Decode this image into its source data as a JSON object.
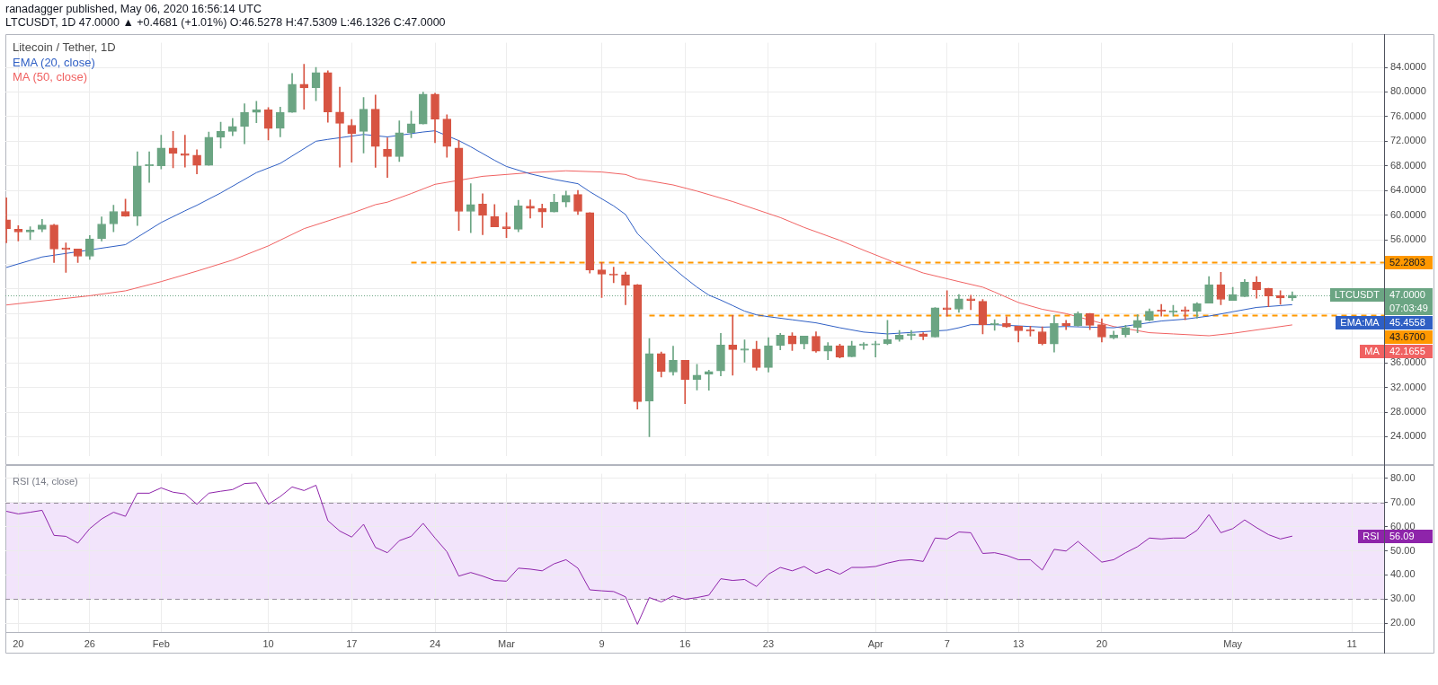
{
  "chart_data": [
    {
      "type": "candlestick",
      "title": "Litecoin / Tether, 1D",
      "subtitle": "LTCUSDT, 1D 47.0000 ▲ +0.4681 (+1.01%) O:46.5278 H:47.5309 L:46.1326 C:47.0000",
      "annotations": [
        "ranadagger published, May 06, 2020 16:56:14 UTC",
        "LTCUSDT",
        "07:03:49",
        "EMA:MA",
        "45.4558",
        "MA",
        "42.1655"
      ],
      "x": [
        "2020-01-19",
        "2020-01-20",
        "2020-01-21",
        "2020-01-22",
        "2020-01-23",
        "2020-01-24",
        "2020-01-25",
        "2020-01-26",
        "2020-01-27",
        "2020-01-28",
        "2020-01-29",
        "2020-01-30",
        "2020-01-31",
        "2020-02-01",
        "2020-02-02",
        "2020-02-03",
        "2020-02-04",
        "2020-02-05",
        "2020-02-06",
        "2020-02-07",
        "2020-02-08",
        "2020-02-09",
        "2020-02-10",
        "2020-02-11",
        "2020-02-12",
        "2020-02-13",
        "2020-02-14",
        "2020-02-15",
        "2020-02-16",
        "2020-02-17",
        "2020-02-18",
        "2020-02-19",
        "2020-02-20",
        "2020-02-21",
        "2020-02-22",
        "2020-02-23",
        "2020-02-24",
        "2020-02-25",
        "2020-02-26",
        "2020-02-27",
        "2020-02-28",
        "2020-02-29",
        "2020-03-01",
        "2020-03-02",
        "2020-03-03",
        "2020-03-04",
        "2020-03-05",
        "2020-03-06",
        "2020-03-07",
        "2020-03-08",
        "2020-03-09",
        "2020-03-10",
        "2020-03-11",
        "2020-03-12",
        "2020-03-13",
        "2020-03-14",
        "2020-03-15",
        "2020-03-16",
        "2020-03-17",
        "2020-03-18",
        "2020-03-19",
        "2020-03-20",
        "2020-03-21",
        "2020-03-22",
        "2020-03-23",
        "2020-03-24",
        "2020-03-25",
        "2020-03-26",
        "2020-03-27",
        "2020-03-28",
        "2020-03-29",
        "2020-03-30",
        "2020-03-31",
        "2020-04-01",
        "2020-04-02",
        "2020-04-03",
        "2020-04-04",
        "2020-04-05",
        "2020-04-06",
        "2020-04-07",
        "2020-04-08",
        "2020-04-09",
        "2020-04-10",
        "2020-04-11",
        "2020-04-12",
        "2020-04-13",
        "2020-04-14",
        "2020-04-15",
        "2020-04-16",
        "2020-04-17",
        "2020-04-18",
        "2020-04-19",
        "2020-04-20",
        "2020-04-21",
        "2020-04-22",
        "2020-04-23",
        "2020-04-24",
        "2020-04-25",
        "2020-04-26",
        "2020-04-27",
        "2020-04-28",
        "2020-04-29",
        "2020-04-30",
        "2020-05-01",
        "2020-05-02",
        "2020-05-03",
        "2020-05-04",
        "2020-05-05",
        "2020-05-06"
      ],
      "ohlc": [
        [
          59.25,
          62.8,
          55.5,
          57.75
        ],
        [
          57.7,
          58.3,
          55.8,
          57.25
        ],
        [
          57.25,
          58.1,
          56.0,
          57.6
        ],
        [
          57.7,
          59.3,
          57.3,
          58.4
        ],
        [
          58.4,
          58.5,
          52.3,
          54.5
        ],
        [
          54.55,
          55.5,
          50.7,
          54.45
        ],
        [
          54.5,
          54.5,
          52.3,
          53.3
        ],
        [
          53.3,
          56.7,
          52.8,
          56.15
        ],
        [
          56.15,
          59.7,
          55.8,
          58.55
        ],
        [
          58.55,
          61.6,
          57.3,
          60.6
        ],
        [
          60.6,
          62.6,
          59.8,
          59.8
        ],
        [
          59.8,
          70.3,
          58.3,
          68.0
        ],
        [
          68.0,
          70.3,
          65.3,
          68.05
        ],
        [
          68.0,
          73.0,
          67.5,
          70.9
        ],
        [
          70.9,
          73.6,
          67.7,
          70.0
        ],
        [
          70.0,
          73.0,
          67.8,
          69.7
        ],
        [
          69.75,
          70.6,
          66.7,
          68.1
        ],
        [
          68.1,
          73.5,
          68.1,
          72.65
        ],
        [
          72.65,
          75.1,
          70.9,
          73.6
        ],
        [
          73.6,
          75.7,
          72.9,
          74.4
        ],
        [
          74.4,
          78.1,
          71.6,
          76.7
        ],
        [
          76.7,
          78.5,
          75.0,
          77.1
        ],
        [
          77.1,
          77.45,
          72.2,
          74.05
        ],
        [
          74.1,
          77.55,
          72.7,
          76.7
        ],
        [
          76.7,
          83.0,
          76.7,
          81.25
        ],
        [
          81.25,
          84.5,
          77.2,
          80.65
        ],
        [
          80.7,
          84.0,
          78.6,
          83.15
        ],
        [
          83.15,
          83.45,
          75.1,
          76.75
        ],
        [
          76.75,
          80.8,
          67.8,
          74.9
        ],
        [
          74.6,
          75.55,
          68.6,
          73.25
        ],
        [
          73.6,
          79.1,
          70.1,
          77.2
        ],
        [
          77.2,
          79.5,
          67.75,
          71.15
        ],
        [
          70.7,
          72.55,
          66.1,
          69.5
        ],
        [
          69.5,
          75.3,
          68.7,
          73.4
        ],
        [
          73.4,
          76.9,
          72.55,
          74.85
        ],
        [
          74.8,
          80.0,
          74.8,
          79.65
        ],
        [
          79.65,
          79.8,
          71.75,
          75.6
        ],
        [
          75.6,
          76.3,
          69.4,
          71.15
        ],
        [
          70.9,
          72.1,
          57.5,
          60.6
        ],
        [
          60.6,
          65.1,
          57.15,
          61.7
        ],
        [
          61.8,
          63.45,
          56.8,
          59.95
        ],
        [
          59.8,
          61.7,
          58.1,
          58.1
        ],
        [
          58.1,
          60.4,
          56.35,
          57.8
        ],
        [
          57.7,
          62.4,
          57.3,
          61.5
        ],
        [
          61.45,
          62.5,
          59.5,
          61.1
        ],
        [
          61.1,
          61.8,
          58.0,
          60.5
        ],
        [
          60.5,
          63.4,
          60.5,
          62.1
        ],
        [
          62.1,
          63.9,
          61.35,
          63.2
        ],
        [
          63.35,
          64.0,
          60.1,
          60.6
        ],
        [
          60.4,
          60.4,
          50.6,
          51.1
        ],
        [
          51.1,
          52.3,
          46.6,
          50.4
        ],
        [
          50.3,
          51.55,
          49.0,
          50.25
        ],
        [
          50.3,
          50.75,
          45.45,
          48.6
        ],
        [
          48.65,
          48.75,
          28.5,
          29.7
        ],
        [
          29.8,
          39.95,
          24.0,
          37.5
        ],
        [
          37.5,
          37.75,
          33.7,
          34.6
        ],
        [
          34.5,
          38.7,
          34.0,
          36.4
        ],
        [
          36.4,
          36.4,
          29.35,
          33.3
        ],
        [
          33.3,
          35.75,
          31.6,
          34.0
        ],
        [
          34.15,
          34.8,
          31.55,
          34.6
        ],
        [
          34.7,
          40.8,
          33.9,
          38.9
        ],
        [
          38.9,
          43.7,
          34.0,
          38.15
        ],
        [
          38.05,
          39.75,
          36.1,
          38.15
        ],
        [
          38.25,
          39.5,
          34.8,
          35.25
        ],
        [
          35.25,
          40.1,
          34.5,
          38.8
        ],
        [
          38.8,
          40.8,
          38.1,
          40.5
        ],
        [
          40.4,
          40.9,
          38.0,
          39.05
        ],
        [
          39.05,
          40.35,
          38.25,
          40.35
        ],
        [
          40.3,
          41.05,
          37.7,
          37.9
        ],
        [
          37.9,
          39.3,
          36.5,
          38.8
        ],
        [
          38.8,
          39.05,
          36.8,
          36.9
        ],
        [
          37.0,
          39.5,
          37.0,
          38.8
        ],
        [
          38.85,
          39.3,
          38.2,
          38.9
        ],
        [
          38.9,
          39.5,
          36.95,
          39.0
        ],
        [
          39.15,
          42.9,
          38.95,
          39.8
        ],
        [
          39.8,
          41.25,
          39.5,
          40.5
        ],
        [
          40.45,
          41.25,
          39.75,
          40.7
        ],
        [
          40.7,
          40.9,
          39.75,
          40.3
        ],
        [
          40.2,
          45.0,
          40.2,
          44.95
        ],
        [
          44.95,
          47.7,
          43.6,
          44.65
        ],
        [
          44.7,
          47.1,
          44.2,
          46.4
        ],
        [
          46.4,
          47.0,
          44.65,
          46.15
        ],
        [
          46.0,
          46.3,
          40.7,
          42.2
        ],
        [
          42.2,
          43.0,
          41.3,
          42.4
        ],
        [
          42.4,
          43.5,
          41.75,
          41.85
        ],
        [
          41.95,
          41.95,
          39.4,
          41.2
        ],
        [
          41.25,
          41.95,
          40.35,
          41.15
        ],
        [
          41.05,
          41.85,
          38.9,
          39.15
        ],
        [
          39.05,
          43.7,
          37.75,
          42.4
        ],
        [
          42.4,
          42.9,
          41.4,
          42.05
        ],
        [
          42.05,
          44.3,
          41.95,
          44.05
        ],
        [
          44.05,
          44.05,
          41.4,
          42.1
        ],
        [
          42.2,
          43.15,
          39.4,
          40.2
        ],
        [
          40.05,
          41.15,
          39.9,
          40.55
        ],
        [
          40.55,
          42.1,
          40.2,
          41.75
        ],
        [
          41.75,
          43.8,
          40.9,
          42.9
        ],
        [
          42.9,
          44.75,
          42.8,
          44.4
        ],
        [
          44.45,
          45.5,
          43.6,
          44.35
        ],
        [
          44.2,
          45.35,
          43.6,
          44.45
        ],
        [
          44.45,
          45.1,
          43.0,
          44.4
        ],
        [
          44.35,
          45.8,
          43.25,
          45.6
        ],
        [
          45.7,
          50.0,
          45.7,
          48.7
        ],
        [
          48.7,
          50.7,
          45.45,
          46.3
        ],
        [
          46.15,
          48.25,
          46.15,
          47.1
        ],
        [
          46.75,
          49.55,
          46.75,
          49.1
        ],
        [
          49.1,
          50.0,
          46.5,
          47.9
        ],
        [
          48.1,
          48.1,
          45.1,
          46.85
        ],
        [
          46.9,
          47.7,
          45.5,
          46.53
        ],
        [
          46.5278,
          47.5309,
          46.1326,
          47.0
        ]
      ],
      "colors": [
        "#d75442",
        "#d75442",
        "#6ba583",
        "#6ba583",
        "#d75442",
        "#d75442",
        "#d75442",
        "#6ba583",
        "#6ba583",
        "#6ba583",
        "#d75442",
        "#6ba583",
        "#6ba583",
        "#6ba583",
        "#d75442",
        "#d75442",
        "#d75442",
        "#6ba583",
        "#6ba583",
        "#6ba583",
        "#6ba583",
        "#6ba583",
        "#d75442",
        "#6ba583",
        "#6ba583",
        "#d75442",
        "#6ba583",
        "#d75442",
        "#d75442",
        "#d75442",
        "#6ba583",
        "#d75442",
        "#d75442",
        "#6ba583",
        "#6ba583",
        "#6ba583",
        "#d75442",
        "#d75442",
        "#d75442",
        "#6ba583",
        "#d75442",
        "#d75442",
        "#d75442",
        "#6ba583",
        "#d75442",
        "#d75442",
        "#6ba583",
        "#6ba583",
        "#d75442",
        "#d75442",
        "#d75442",
        "#d75442",
        "#d75442",
        "#d75442",
        "#6ba583",
        "#d75442",
        "#6ba583",
        "#d75442",
        "#6ba583",
        "#6ba583",
        "#6ba583",
        "#d75442",
        "#6ba583",
        "#d75442",
        "#6ba583",
        "#6ba583",
        "#d75442",
        "#6ba583",
        "#d75442",
        "#6ba583",
        "#d75442",
        "#6ba583",
        "#6ba583",
        "#6ba583",
        "#6ba583",
        "#6ba583",
        "#6ba583",
        "#d75442",
        "#6ba583",
        "#d75442",
        "#6ba583",
        "#d75442",
        "#d75442",
        "#6ba583",
        "#d75442",
        "#d75442",
        "#d75442",
        "#d75442",
        "#6ba583",
        "#d75442",
        "#6ba583",
        "#d75442",
        "#d75442",
        "#6ba583",
        "#6ba583",
        "#6ba583",
        "#6ba583",
        "#d75442",
        "#6ba583",
        "#d75442",
        "#6ba583",
        "#6ba583",
        "#d75442",
        "#6ba583",
        "#6ba583",
        "#d75442",
        "#d75442",
        "#d75442",
        "#6ba583"
      ],
      "series": [
        {
          "type": "line",
          "name": "EMA (20, close)",
          "color": "#2f5fc4",
          "x": [
            "2020-01-19",
            "2020-01-22",
            "2020-01-29",
            "2020-02-01",
            "2020-02-03",
            "2020-02-04",
            "2020-02-06",
            "2020-02-09",
            "2020-02-11",
            "2020-02-14",
            "2020-02-15",
            "2020-02-18",
            "2020-02-20",
            "2020-02-23",
            "2020-02-24",
            "2020-02-26",
            "2020-02-27",
            "2020-02-29",
            "2020-03-01",
            "2020-03-03",
            "2020-03-05",
            "2020-03-07",
            "2020-03-08",
            "2020-03-10",
            "2020-03-11",
            "2020-03-12",
            "2020-03-13",
            "2020-03-14",
            "2020-03-15",
            "2020-03-16",
            "2020-03-17",
            "2020-03-18",
            "2020-03-19",
            "2020-03-20",
            "2020-03-21",
            "2020-03-22",
            "2020-03-23",
            "2020-03-25",
            "2020-03-27",
            "2020-03-29",
            "2020-03-31",
            "2020-04-02",
            "2020-04-07",
            "2020-04-08",
            "2020-04-09",
            "2020-04-11",
            "2020-04-13",
            "2020-04-15",
            "2020-04-17",
            "2020-04-21",
            "2020-04-25",
            "2020-04-27",
            "2020-04-29",
            "2020-05-01",
            "2020-05-03",
            "2020-05-05",
            "2020-05-06"
          ],
          "values": [
            51.5,
            53.2,
            55.2,
            58.8,
            60.7,
            61.6,
            63.6,
            66.9,
            68.4,
            72.0,
            72.3,
            73.1,
            72.7,
            73.5,
            73.7,
            72.1,
            71.1,
            68.9,
            67.9,
            66.7,
            65.8,
            65.1,
            63.8,
            61.5,
            60.1,
            57.0,
            55.1,
            53.1,
            51.4,
            49.8,
            48.3,
            47.0,
            46.2,
            45.3,
            44.4,
            43.8,
            43.5,
            43.0,
            42.5,
            41.7,
            41.0,
            40.7,
            41.3,
            41.7,
            42.2,
            42.2,
            42.0,
            41.8,
            41.9,
            41.7,
            42.8,
            43.1,
            43.6,
            44.3,
            45.0,
            45.3,
            45.4558
          ]
        },
        {
          "type": "line",
          "name": "MA (50, close)",
          "color": "#f06262",
          "x": [
            "2020-01-19",
            "2020-01-26",
            "2020-01-29",
            "2020-02-01",
            "2020-02-04",
            "2020-02-07",
            "2020-02-10",
            "2020-02-13",
            "2020-02-17",
            "2020-02-19",
            "2020-02-20",
            "2020-02-22",
            "2020-02-24",
            "2020-02-28",
            "2020-03-03",
            "2020-03-06",
            "2020-03-09",
            "2020-03-11",
            "2020-03-12",
            "2020-03-15",
            "2020-03-17",
            "2020-03-20",
            "2020-03-24",
            "2020-03-26",
            "2020-03-29",
            "2020-03-31",
            "2020-04-03",
            "2020-04-05",
            "2020-04-08",
            "2020-04-10",
            "2020-04-11",
            "2020-04-13",
            "2020-04-15",
            "2020-04-17",
            "2020-04-21",
            "2020-04-24",
            "2020-04-26",
            "2020-04-29",
            "2020-05-01",
            "2020-05-06"
          ],
          "values": [
            45.4,
            46.9,
            47.7,
            49.2,
            50.9,
            52.7,
            55.0,
            57.8,
            60.3,
            61.7,
            62.1,
            63.5,
            65.0,
            66.3,
            66.9,
            67.2,
            67.0,
            66.6,
            65.9,
            64.9,
            63.9,
            62.2,
            59.6,
            58.0,
            55.9,
            54.3,
            52.0,
            50.6,
            49.2,
            48.3,
            47.5,
            45.8,
            44.7,
            44.0,
            41.9,
            40.9,
            40.7,
            40.4,
            40.8,
            42.1655
          ]
        },
        {
          "type": "line",
          "color": "#ff9800",
          "line_style": "dashed",
          "x": [
            "2020-02-22",
            "2020-05-13T17:00"
          ],
          "values": [
            52.2803,
            52.2803
          ],
          "value_labels": [
            null,
            "52.2803"
          ]
        },
        {
          "type": "line",
          "color": "#ff9800",
          "line_style": "dashed",
          "x": [
            "2020-03-13",
            "2020-05-13T17:00"
          ],
          "values": [
            43.67,
            43.67
          ],
          "value_labels": [
            null,
            "43.6700"
          ]
        }
      ],
      "ref_lines": [
        {
          "axis": "y",
          "value": 47,
          "label": "47.0000",
          "color": "#6ba583",
          "line_style": "dotted"
        }
      ],
      "xlim": [
        "2020-01-18T22:00",
        "2020-05-13T17:00"
      ],
      "xticks": [
        {
          "value": "2020-01-20",
          "label": null
        },
        {
          "value": "2020-01-26",
          "label": null
        },
        {
          "value": "2020-02-01",
          "label": null
        },
        {
          "value": "2020-02-10",
          "label": null
        },
        {
          "value": "2020-02-17",
          "label": null
        },
        {
          "value": "2020-02-24",
          "label": null
        },
        {
          "value": "2020-03-01",
          "label": null
        },
        {
          "value": "2020-03-09",
          "label": null
        },
        {
          "value": "2020-03-16",
          "label": null
        },
        {
          "value": "2020-03-23",
          "label": null
        },
        {
          "value": "2020-04-01",
          "label": null
        },
        {
          "value": "2020-04-07",
          "label": null
        },
        {
          "value": "2020-04-13",
          "label": null
        },
        {
          "value": "2020-04-20",
          "label": null
        },
        {
          "value": "2020-05-01",
          "label": null
        },
        {
          "value": "2020-05-11",
          "label": null
        }
      ],
      "ylim": [
        20.8,
        88
      ],
      "yticks": [
        {
          "value": 24,
          "label": "24.0000"
        },
        {
          "value": 28,
          "label": "28.0000"
        },
        {
          "value": 32,
          "label": "32.0000"
        },
        {
          "value": 36,
          "label": "36.0000"
        },
        {
          "value": 40,
          "label": null
        },
        {
          "value": 44,
          "label": null
        },
        {
          "value": 48,
          "label": null
        },
        {
          "value": 52,
          "label": null
        },
        {
          "value": 56,
          "label": "56.0000"
        },
        {
          "value": 60,
          "label": "60.0000"
        },
        {
          "value": 64,
          "label": "64.0000"
        },
        {
          "value": 68,
          "label": "68.0000"
        },
        {
          "value": 72,
          "label": "72.0000"
        },
        {
          "value": 76,
          "label": "76.0000"
        },
        {
          "value": 80,
          "label": "80.0000"
        },
        {
          "value": 84,
          "label": "84.0000"
        }
      ],
      "grid": true,
      "legend": "top left",
      "tick_labels": "y",
      "marker": "none"
    },
    {
      "type": "line",
      "title": "RSI (14, close)",
      "x": [
        "2020-01-19",
        "2020-01-20",
        "2020-01-21",
        "2020-01-22",
        "2020-01-23",
        "2020-01-24",
        "2020-01-25",
        "2020-01-26",
        "2020-01-27",
        "2020-01-28",
        "2020-01-29",
        "2020-01-30",
        "2020-01-31",
        "2020-02-01",
        "2020-02-02",
        "2020-02-03",
        "2020-02-04",
        "2020-02-05",
        "2020-02-06",
        "2020-02-07",
        "2020-02-08",
        "2020-02-09",
        "2020-02-10",
        "2020-02-11",
        "2020-02-12",
        "2020-02-13",
        "2020-02-14",
        "2020-02-15",
        "2020-02-16",
        "2020-02-17",
        "2020-02-18",
        "2020-02-19",
        "2020-02-20",
        "2020-02-21",
        "2020-02-22",
        "2020-02-23",
        "2020-02-24",
        "2020-02-25",
        "2020-02-26",
        "2020-02-27",
        "2020-02-28",
        "2020-02-29",
        "2020-03-01",
        "2020-03-02",
        "2020-03-03",
        "2020-03-04",
        "2020-03-05",
        "2020-03-06",
        "2020-03-07",
        "2020-03-08",
        "2020-03-09",
        "2020-03-10",
        "2020-03-11",
        "2020-03-12",
        "2020-03-13",
        "2020-03-14",
        "2020-03-15",
        "2020-03-16",
        "2020-03-17",
        "2020-03-18",
        "2020-03-19",
        "2020-03-20",
        "2020-03-21",
        "2020-03-22",
        "2020-03-23",
        "2020-03-24",
        "2020-03-25",
        "2020-03-26",
        "2020-03-27",
        "2020-03-28",
        "2020-03-29",
        "2020-03-30",
        "2020-03-31",
        "2020-04-01",
        "2020-04-02",
        "2020-04-03",
        "2020-04-04",
        "2020-04-05",
        "2020-04-06",
        "2020-04-07",
        "2020-04-08",
        "2020-04-09",
        "2020-04-10",
        "2020-04-11",
        "2020-04-12",
        "2020-04-13",
        "2020-04-14",
        "2020-04-15",
        "2020-04-16",
        "2020-04-17",
        "2020-04-18",
        "2020-04-19",
        "2020-04-20",
        "2020-04-21",
        "2020-04-22",
        "2020-04-23",
        "2020-04-24",
        "2020-04-25",
        "2020-04-26",
        "2020-04-27",
        "2020-04-28",
        "2020-04-29",
        "2020-04-30",
        "2020-05-01",
        "2020-05-02",
        "2020-05-03",
        "2020-05-04",
        "2020-05-05",
        "2020-05-06"
      ],
      "series": [
        {
          "color": "#8e24aa",
          "values": [
            66.4,
            65.3,
            66.0,
            66.8,
            56.4,
            56.0,
            53.2,
            59.2,
            63.2,
            66.0,
            64.3,
            73.9,
            73.9,
            76.1,
            74.3,
            73.6,
            69.3,
            73.9,
            74.7,
            75.4,
            77.9,
            78.2,
            69.3,
            72.5,
            76.5,
            75.0,
            77.2,
            62.5,
            58.2,
            55.7,
            61.0,
            51.4,
            49.2,
            54.2,
            56.0,
            61.4,
            55.3,
            49.6,
            39.5,
            41.0,
            39.5,
            37.7,
            37.4,
            42.8,
            42.4,
            41.7,
            44.6,
            46.3,
            42.8,
            33.8,
            33.4,
            33.1,
            30.9,
            19.5,
            30.6,
            28.8,
            31.3,
            29.9,
            30.6,
            31.6,
            38.4,
            37.7,
            38.1,
            35.2,
            40.3,
            43.1,
            41.7,
            43.5,
            40.6,
            42.4,
            40.3,
            43.1,
            43.1,
            43.5,
            44.9,
            46.0,
            46.3,
            45.6,
            55.3,
            54.9,
            57.8,
            57.5,
            48.9,
            49.2,
            48.1,
            46.3,
            46.3,
            42.0,
            50.6,
            49.9,
            53.9,
            49.6,
            45.3,
            46.3,
            49.2,
            51.7,
            55.3,
            54.9,
            55.3,
            55.3,
            58.5,
            65.0,
            57.5,
            59.2,
            62.8,
            59.6,
            56.7,
            54.9,
            56.09
          ]
        }
      ],
      "bands": [
        {
          "axis": "y",
          "from": 30,
          "to": 70,
          "color": "#f2e4fb"
        }
      ],
      "annotations": [
        "RSI",
        "56.09"
      ],
      "xlim": [
        "2020-01-18T22:00",
        "2020-05-13T17:00"
      ],
      "xticks": [
        {
          "value": "2020-01-20",
          "label": "20"
        },
        {
          "value": "2020-01-26",
          "label": "26"
        },
        {
          "value": "2020-02-01",
          "label": "Feb"
        },
        {
          "value": "2020-02-10",
          "label": "10"
        },
        {
          "value": "2020-02-17",
          "label": "17"
        },
        {
          "value": "2020-02-24",
          "label": "24"
        },
        {
          "value": "2020-03-01",
          "label": "Mar"
        },
        {
          "value": "2020-03-09",
          "label": "9"
        },
        {
          "value": "2020-03-16",
          "label": "16"
        },
        {
          "value": "2020-03-23",
          "label": "23"
        },
        {
          "value": "2020-04-01",
          "label": "Apr"
        },
        {
          "value": "2020-04-07",
          "label": "7"
        },
        {
          "value": "2020-04-13",
          "label": "13"
        },
        {
          "value": "2020-04-20",
          "label": "20"
        },
        {
          "value": "2020-05-01",
          "label": "May"
        },
        {
          "value": "2020-05-11",
          "label": "11"
        }
      ],
      "ylim": [
        16.3,
        82
      ],
      "yticks": [
        {
          "value": 20,
          "label": "20.00"
        },
        {
          "value": 30,
          "label": "30.00"
        },
        {
          "value": 40,
          "label": "40.00"
        },
        {
          "value": 50,
          "label": "50.00"
        },
        {
          "value": 60,
          "label": "60.00"
        },
        {
          "value": 70,
          "label": "70.00"
        },
        {
          "value": 80,
          "label": "80.00"
        }
      ],
      "grid": true,
      "marker": "none"
    }
  ]
}
